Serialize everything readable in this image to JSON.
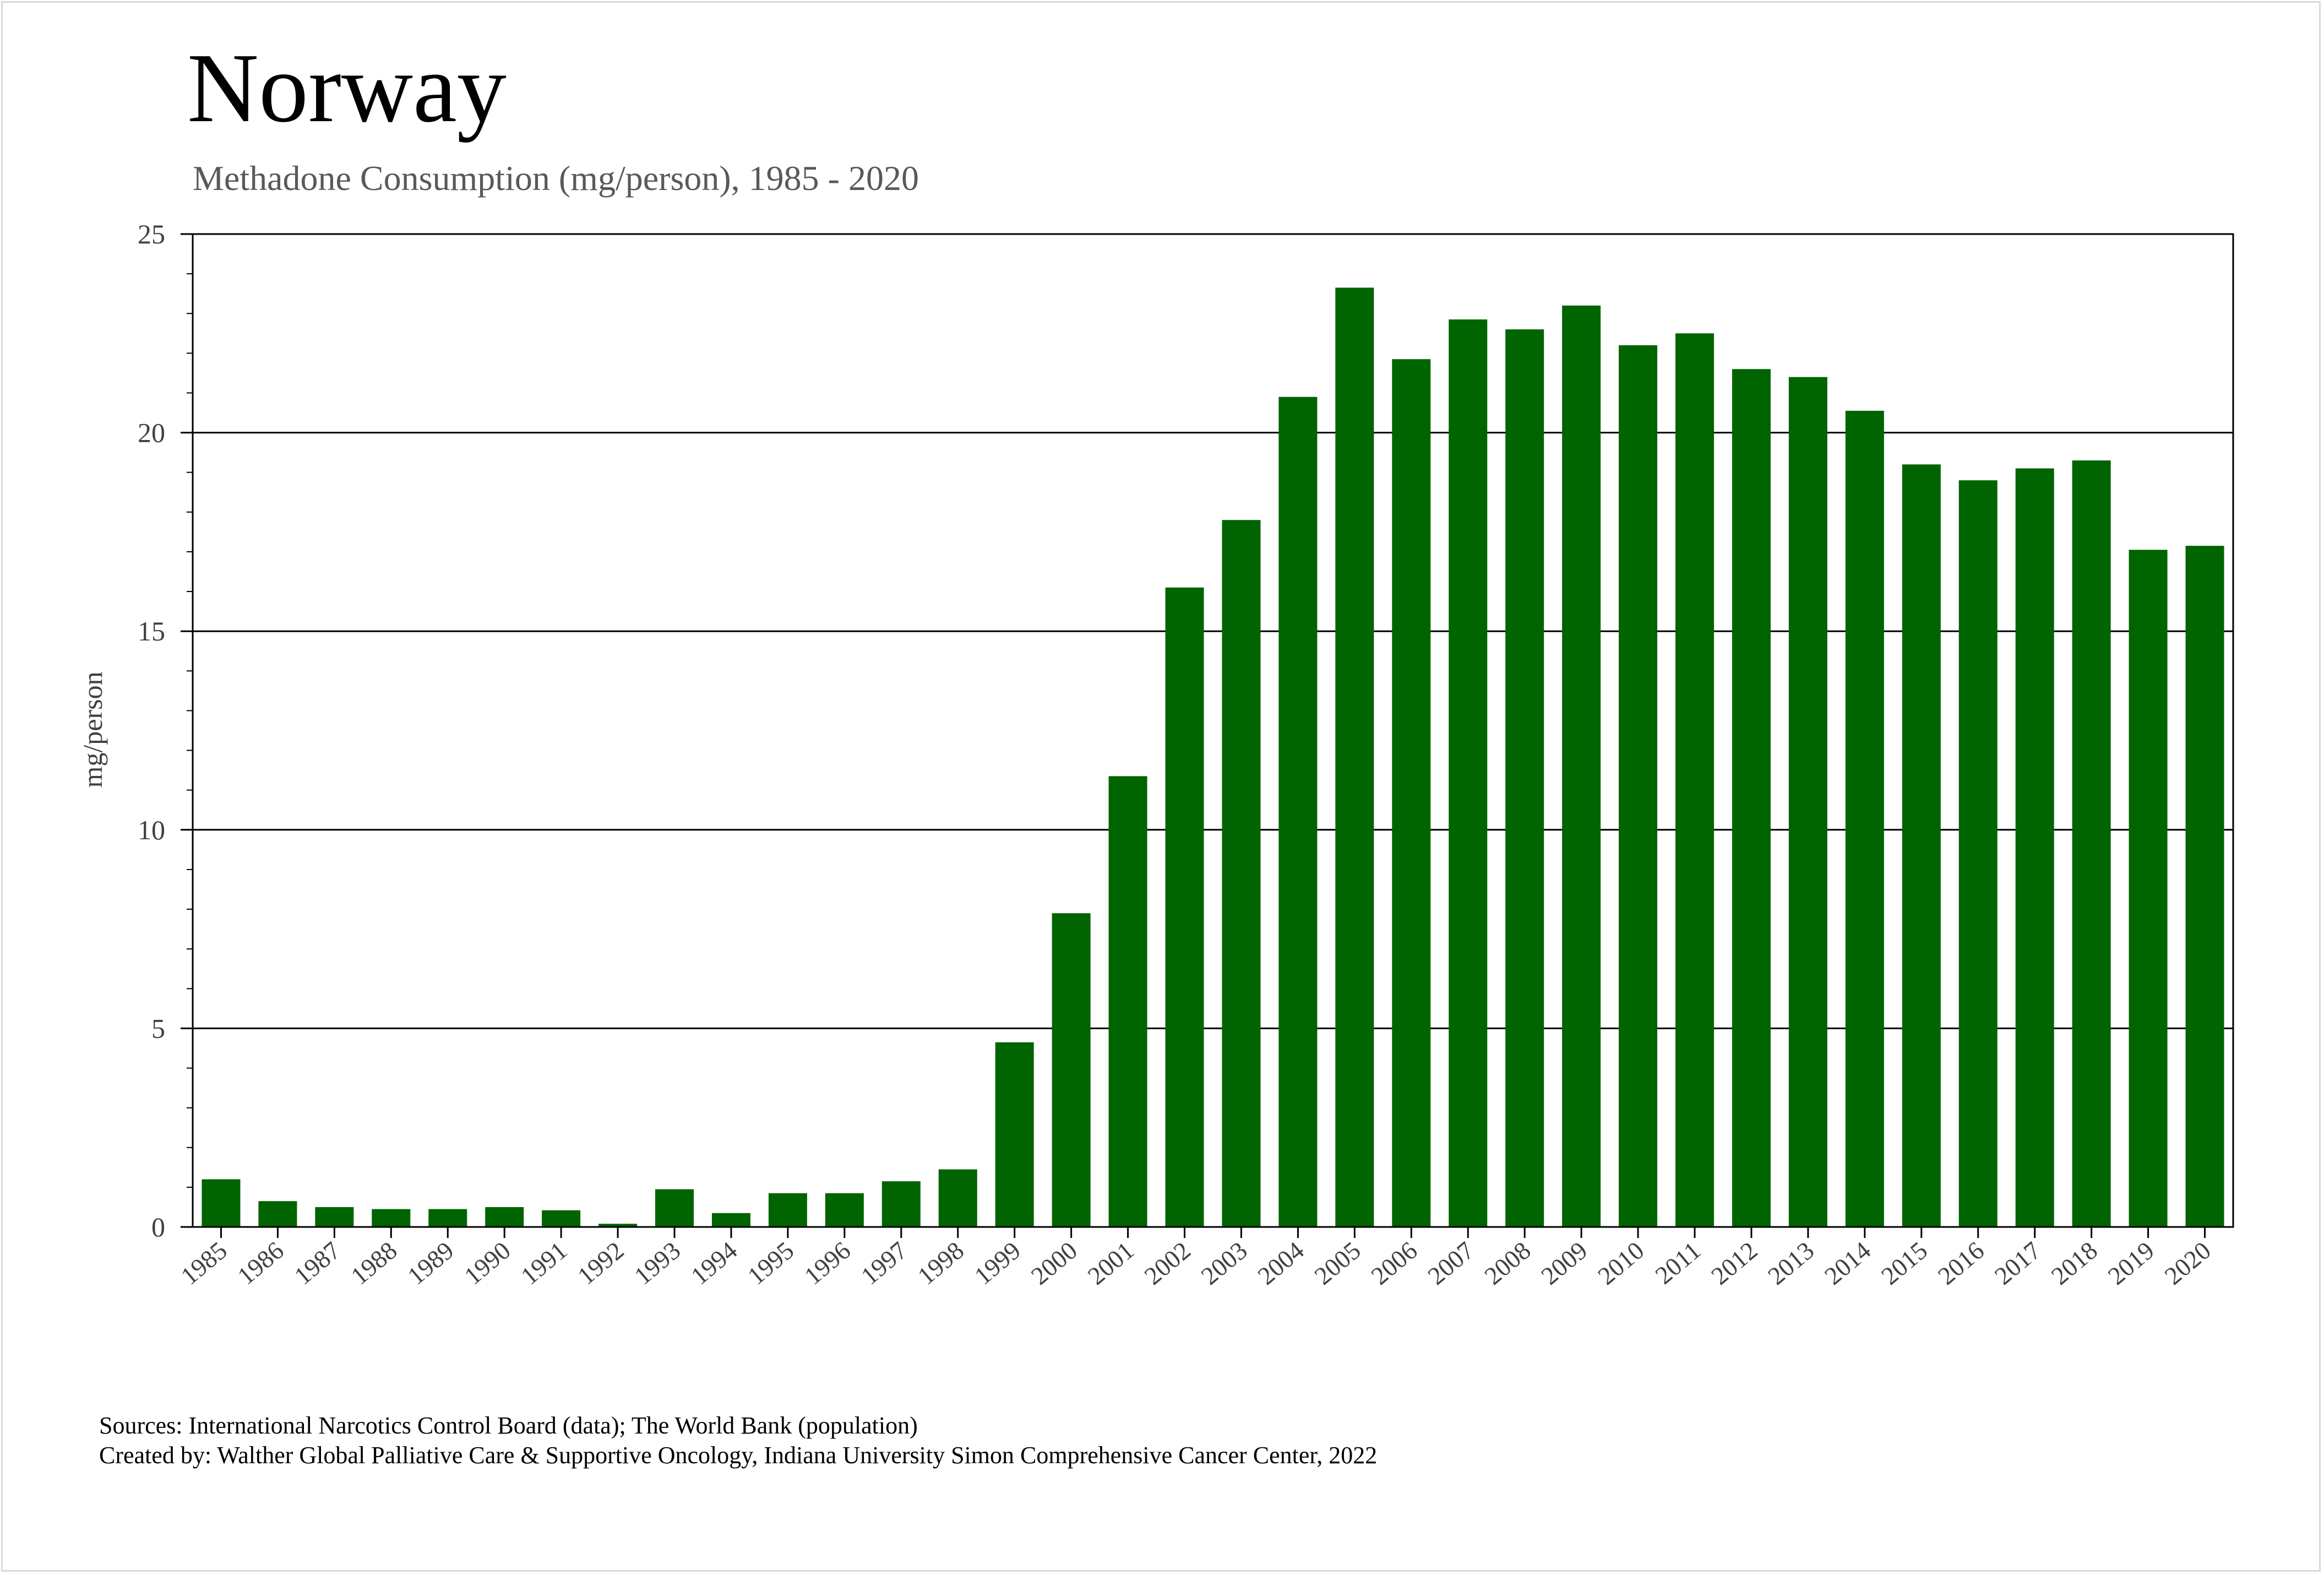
{
  "chart_data": {
    "type": "bar",
    "title": "Norway",
    "subtitle": "Methadone Consumption (mg/person), 1985 - 2020",
    "xlabel": "",
    "ylabel": "mg/person",
    "ylim": [
      0,
      25
    ],
    "yticks": [
      "0",
      "5",
      "10",
      "15",
      "20",
      "25"
    ],
    "categories": [
      "1985",
      "1986",
      "1987",
      "1988",
      "1989",
      "1990",
      "1991",
      "1992",
      "1993",
      "1994",
      "1995",
      "1996",
      "1997",
      "1998",
      "1999",
      "2000",
      "2001",
      "2002",
      "2003",
      "2004",
      "2005",
      "2006",
      "2007",
      "2008",
      "2009",
      "2010",
      "2011",
      "2012",
      "2013",
      "2014",
      "2015",
      "2016",
      "2017",
      "2018",
      "2019",
      "2020"
    ],
    "values": [
      1.2,
      0.65,
      0.5,
      0.45,
      0.45,
      0.5,
      0.42,
      0.08,
      0.95,
      0.35,
      0.85,
      0.85,
      1.15,
      1.45,
      4.65,
      7.9,
      11.35,
      16.1,
      17.8,
      20.9,
      23.65,
      21.85,
      22.85,
      22.6,
      23.2,
      22.2,
      22.5,
      21.6,
      21.4,
      20.55,
      19.2,
      18.8,
      19.1,
      19.3,
      17.05,
      17.15
    ],
    "bar_color": "#006400",
    "grid": true,
    "legend": "none"
  },
  "sources": {
    "line1": "Sources: International Narcotics Control Board (data); The World Bank (population)",
    "line2": "Created by: Walther Global Palliative Care & Supportive Oncology, Indiana University Simon Comprehensive Cancer Center, 2022"
  }
}
